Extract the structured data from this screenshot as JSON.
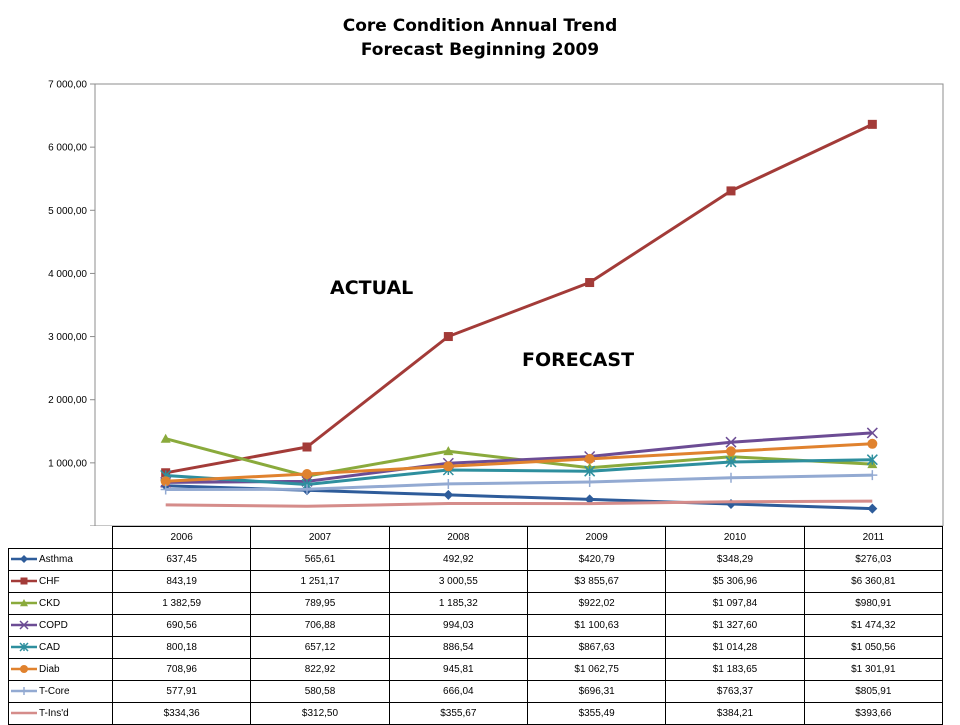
{
  "chart_data": {
    "type": "line",
    "title": "Core Condition Annual Trend",
    "subtitle": "Forecast Beginning 2009",
    "categories": [
      "2006",
      "2007",
      "2008",
      "2009",
      "2010",
      "2011"
    ],
    "ylim": [
      0,
      7000
    ],
    "yticks": [
      0,
      1000,
      2000,
      3000,
      4000,
      5000,
      6000,
      7000
    ],
    "ytick_labels": [
      "-",
      "1 000,00",
      "2 000,00",
      "3 000,00",
      "4 000,00",
      "5 000,00",
      "6 000,00",
      "7 000,00"
    ],
    "grid": false,
    "legend": "table-below",
    "annotations": [
      "ACTUAL",
      "FORECAST"
    ],
    "series": [
      {
        "name": "Asthma",
        "color": "#2E5C9A",
        "marker": "diamond",
        "values": [
          637.45,
          565.61,
          492.92,
          420.79,
          348.29,
          276.03
        ],
        "labels": [
          "637,45",
          "565,61",
          "492,92",
          "$420,79",
          "$348,29",
          "$276,03"
        ]
      },
      {
        "name": "CHF",
        "color": "#A33B38",
        "marker": "square",
        "values": [
          843.19,
          1251.17,
          3000.55,
          3855.67,
          5306.96,
          6360.81
        ],
        "labels": [
          "843,19",
          "1 251,17",
          "3 000,55",
          "$3 855,67",
          "$5 306,96",
          "$6 360,81"
        ]
      },
      {
        "name": "CKD",
        "color": "#8AAA3C",
        "marker": "triangle",
        "values": [
          1382.59,
          789.95,
          1185.32,
          922.02,
          1097.84,
          980.91
        ],
        "labels": [
          "1 382,59",
          "789,95",
          "1 185,32",
          "$922,02",
          "$1 097,84",
          "$980,91"
        ]
      },
      {
        "name": "COPD",
        "color": "#6C4C94",
        "marker": "x",
        "values": [
          690.56,
          706.88,
          994.03,
          1100.63,
          1327.6,
          1474.32
        ],
        "labels": [
          "690,56",
          "706,88",
          "994,03",
          "$1 100,63",
          "$1 327,60",
          "$1 474,32"
        ]
      },
      {
        "name": "CAD",
        "color": "#2E8F9E",
        "marker": "star",
        "values": [
          800.18,
          657.12,
          886.54,
          867.63,
          1014.28,
          1050.56
        ],
        "labels": [
          "800,18",
          "657,12",
          "886,54",
          "$867,63",
          "$1 014,28",
          "$1 050,56"
        ]
      },
      {
        "name": "Diab",
        "color": "#E0822E",
        "marker": "circle",
        "values": [
          708.96,
          822.92,
          945.81,
          1062.75,
          1183.65,
          1301.91
        ],
        "labels": [
          "708,96",
          "822,92",
          "945,81",
          "$1 062,75",
          "$1 183,65",
          "$1 301,91"
        ]
      },
      {
        "name": "T-Core",
        "color": "#93AAD2",
        "marker": "plus",
        "values": [
          577.91,
          580.58,
          666.04,
          696.31,
          763.37,
          805.91
        ],
        "labels": [
          "577,91",
          "580,58",
          "666,04",
          "$696,31",
          "$763,37",
          "$805,91"
        ]
      },
      {
        "name": "T-Ins'd",
        "color": "#D58C8A",
        "marker": "none",
        "values": [
          334.36,
          312.5,
          355.67,
          355.49,
          384.21,
          393.66
        ],
        "labels": [
          "$334,36",
          "$312,50",
          "$355,67",
          "$355,49",
          "$384,21",
          "$393,66"
        ]
      }
    ]
  }
}
